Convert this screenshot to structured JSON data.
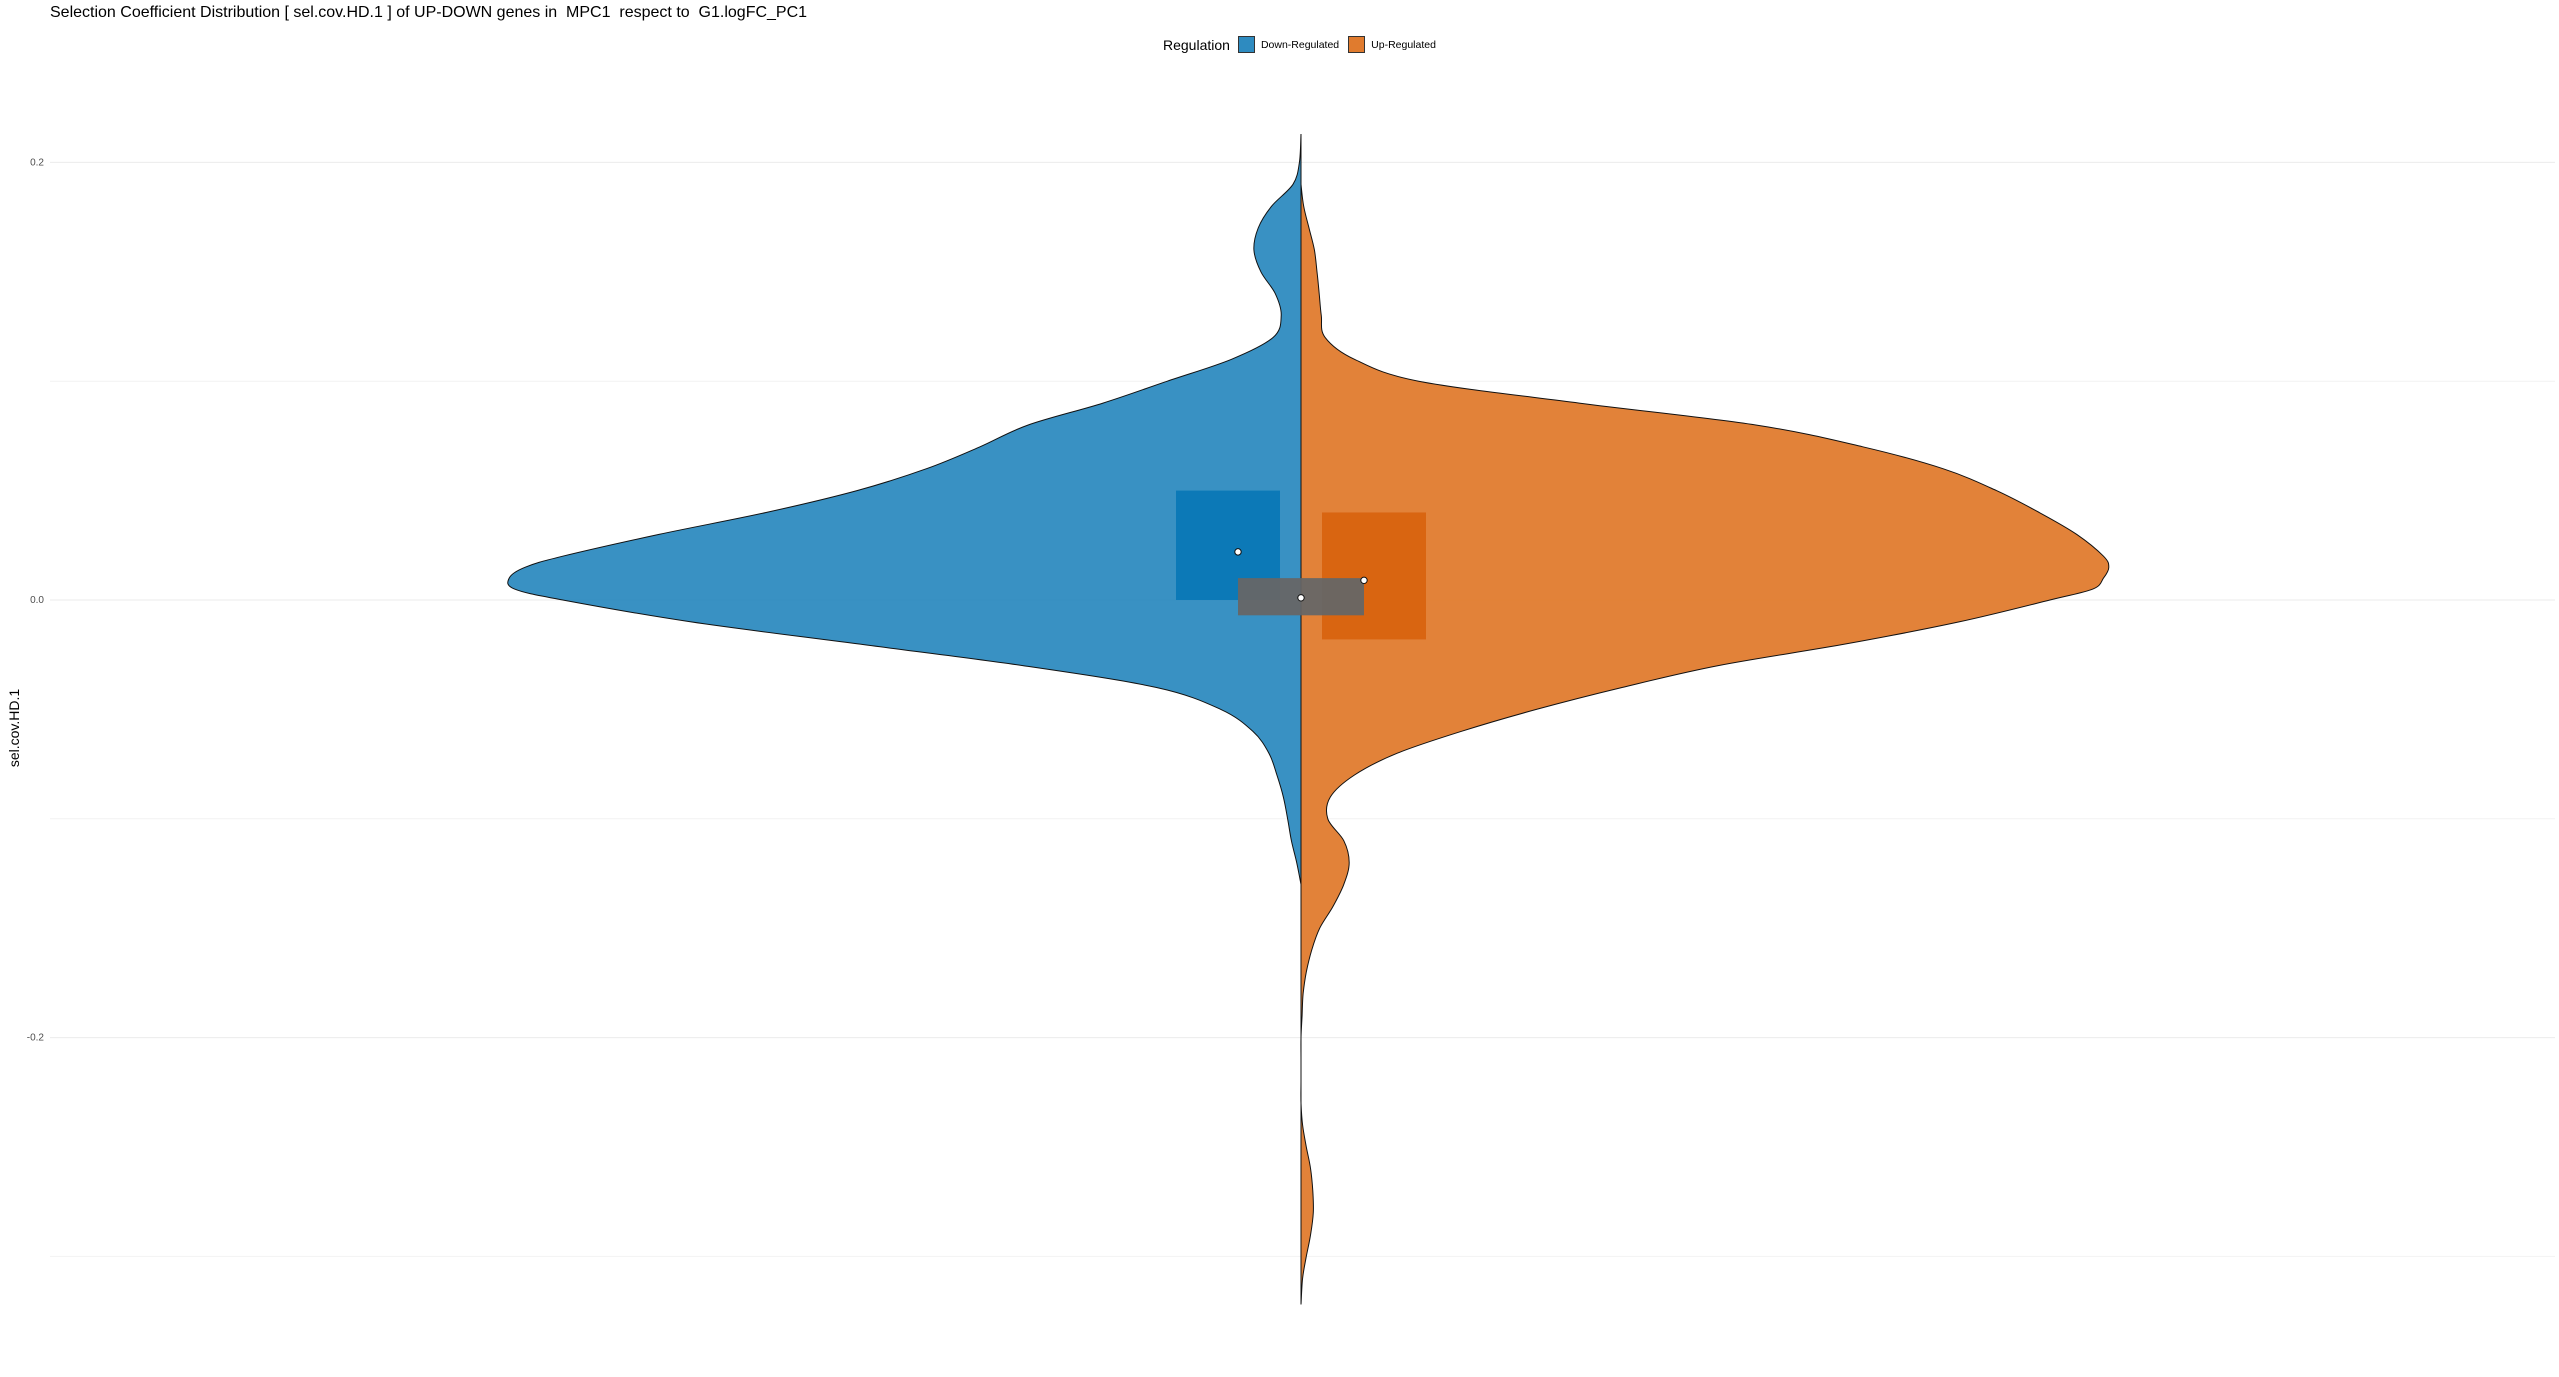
{
  "title": "Selection Coefficient Distribution [ sel.cov.HD.1 ] of UP-DOWN genes in  MPC1  respect to  G1.logFC_PC1",
  "legend": {
    "title": "Regulation",
    "items": [
      {
        "label": "Down-Regulated",
        "color": "#2e8bc0"
      },
      {
        "label": "Up-Regulated",
        "color": "#e07b2e"
      }
    ]
  },
  "chart_data": {
    "type": "split-violin",
    "title": "Selection Coefficient Distribution [ sel.cov.HD.1 ] of UP-DOWN genes in  MPC1  respect to  G1.logFC_PC1",
    "xlabel": "",
    "ylabel": "sel.cov.HD.1",
    "ylim": [
      -0.325,
      0.225
    ],
    "yticks": [
      {
        "value": 0.2,
        "label": "0.2"
      },
      {
        "value": 0.0,
        "label": "0.0"
      },
      {
        "value": -0.2,
        "label": "-0.2"
      }
    ],
    "minor_gridlines": [
      0.1,
      -0.1,
      -0.3
    ],
    "grid": true,
    "legend_position": "top",
    "series": [
      {
        "name": "Down-Regulated",
        "side": "left",
        "color": "#2e8bc0",
        "density_profile": [
          [
            0.213,
            0.0
          ],
          [
            0.2,
            0.003
          ],
          [
            0.19,
            0.015
          ],
          [
            0.18,
            0.055
          ],
          [
            0.17,
            0.08
          ],
          [
            0.16,
            0.088
          ],
          [
            0.15,
            0.075
          ],
          [
            0.14,
            0.048
          ],
          [
            0.13,
            0.037
          ],
          [
            0.12,
            0.052
          ],
          [
            0.11,
            0.13
          ],
          [
            0.1,
            0.25
          ],
          [
            0.09,
            0.37
          ],
          [
            0.08,
            0.51
          ],
          [
            0.07,
            0.6
          ],
          [
            0.06,
            0.7
          ],
          [
            0.05,
            0.83
          ],
          [
            0.04,
            1.0
          ],
          [
            0.03,
            1.2
          ],
          [
            0.02,
            1.38
          ],
          [
            0.015,
            1.45
          ],
          [
            0.01,
            1.48
          ],
          [
            0.005,
            1.47
          ],
          [
            0.0,
            1.38
          ],
          [
            -0.01,
            1.14
          ],
          [
            -0.02,
            0.83
          ],
          [
            -0.03,
            0.52
          ],
          [
            -0.04,
            0.27
          ],
          [
            -0.05,
            0.15
          ],
          [
            -0.06,
            0.09
          ],
          [
            -0.07,
            0.06
          ],
          [
            -0.08,
            0.045
          ],
          [
            -0.09,
            0.033
          ],
          [
            -0.1,
            0.025
          ],
          [
            -0.11,
            0.018
          ],
          [
            -0.12,
            0.008
          ],
          [
            -0.13,
            0.0
          ]
        ],
        "box": {
          "lower": 0.0,
          "upper": 0.05
        },
        "mean": 0.022
      },
      {
        "name": "Up-Regulated",
        "side": "right",
        "color": "#e07b2e",
        "density_profile": [
          [
            0.19,
            0.0
          ],
          [
            0.18,
            0.005
          ],
          [
            0.17,
            0.015
          ],
          [
            0.16,
            0.025
          ],
          [
            0.15,
            0.03
          ],
          [
            0.14,
            0.034
          ],
          [
            0.13,
            0.038
          ],
          [
            0.12,
            0.045
          ],
          [
            0.11,
            0.1
          ],
          [
            0.1,
            0.22
          ],
          [
            0.09,
            0.52
          ],
          [
            0.08,
            0.85
          ],
          [
            0.07,
            1.05
          ],
          [
            0.06,
            1.2
          ],
          [
            0.05,
            1.3
          ],
          [
            0.04,
            1.38
          ],
          [
            0.03,
            1.45
          ],
          [
            0.02,
            1.5
          ],
          [
            0.015,
            1.51
          ],
          [
            0.01,
            1.5
          ],
          [
            0.005,
            1.48
          ],
          [
            0.0,
            1.4
          ],
          [
            -0.01,
            1.23
          ],
          [
            -0.02,
            1.02
          ],
          [
            -0.03,
            0.78
          ],
          [
            -0.04,
            0.6
          ],
          [
            -0.05,
            0.44
          ],
          [
            -0.06,
            0.3
          ],
          [
            -0.07,
            0.18
          ],
          [
            -0.08,
            0.1
          ],
          [
            -0.09,
            0.055
          ],
          [
            -0.1,
            0.05
          ],
          [
            -0.11,
            0.08
          ],
          [
            -0.12,
            0.09
          ],
          [
            -0.13,
            0.08
          ],
          [
            -0.14,
            0.06
          ],
          [
            -0.15,
            0.035
          ],
          [
            -0.16,
            0.02
          ],
          [
            -0.17,
            0.01
          ],
          [
            -0.18,
            0.004
          ],
          [
            -0.19,
            0.002
          ],
          [
            -0.2,
            0.0
          ],
          [
            -0.21,
            0.0
          ],
          [
            -0.22,
            0.0
          ],
          [
            -0.23,
            0.0
          ],
          [
            -0.24,
            0.003
          ],
          [
            -0.25,
            0.01
          ],
          [
            -0.26,
            0.018
          ],
          [
            -0.27,
            0.022
          ],
          [
            -0.28,
            0.023
          ],
          [
            -0.29,
            0.018
          ],
          [
            -0.3,
            0.01
          ],
          [
            -0.31,
            0.003
          ],
          [
            -0.322,
            0.0
          ]
        ],
        "box": {
          "lower": -0.018,
          "upper": 0.04
        },
        "mean": 0.009
      }
    ],
    "overall": {
      "box": {
        "lower": -0.007,
        "upper": 0.01
      },
      "mean": 0.001,
      "color": "#666666"
    }
  }
}
